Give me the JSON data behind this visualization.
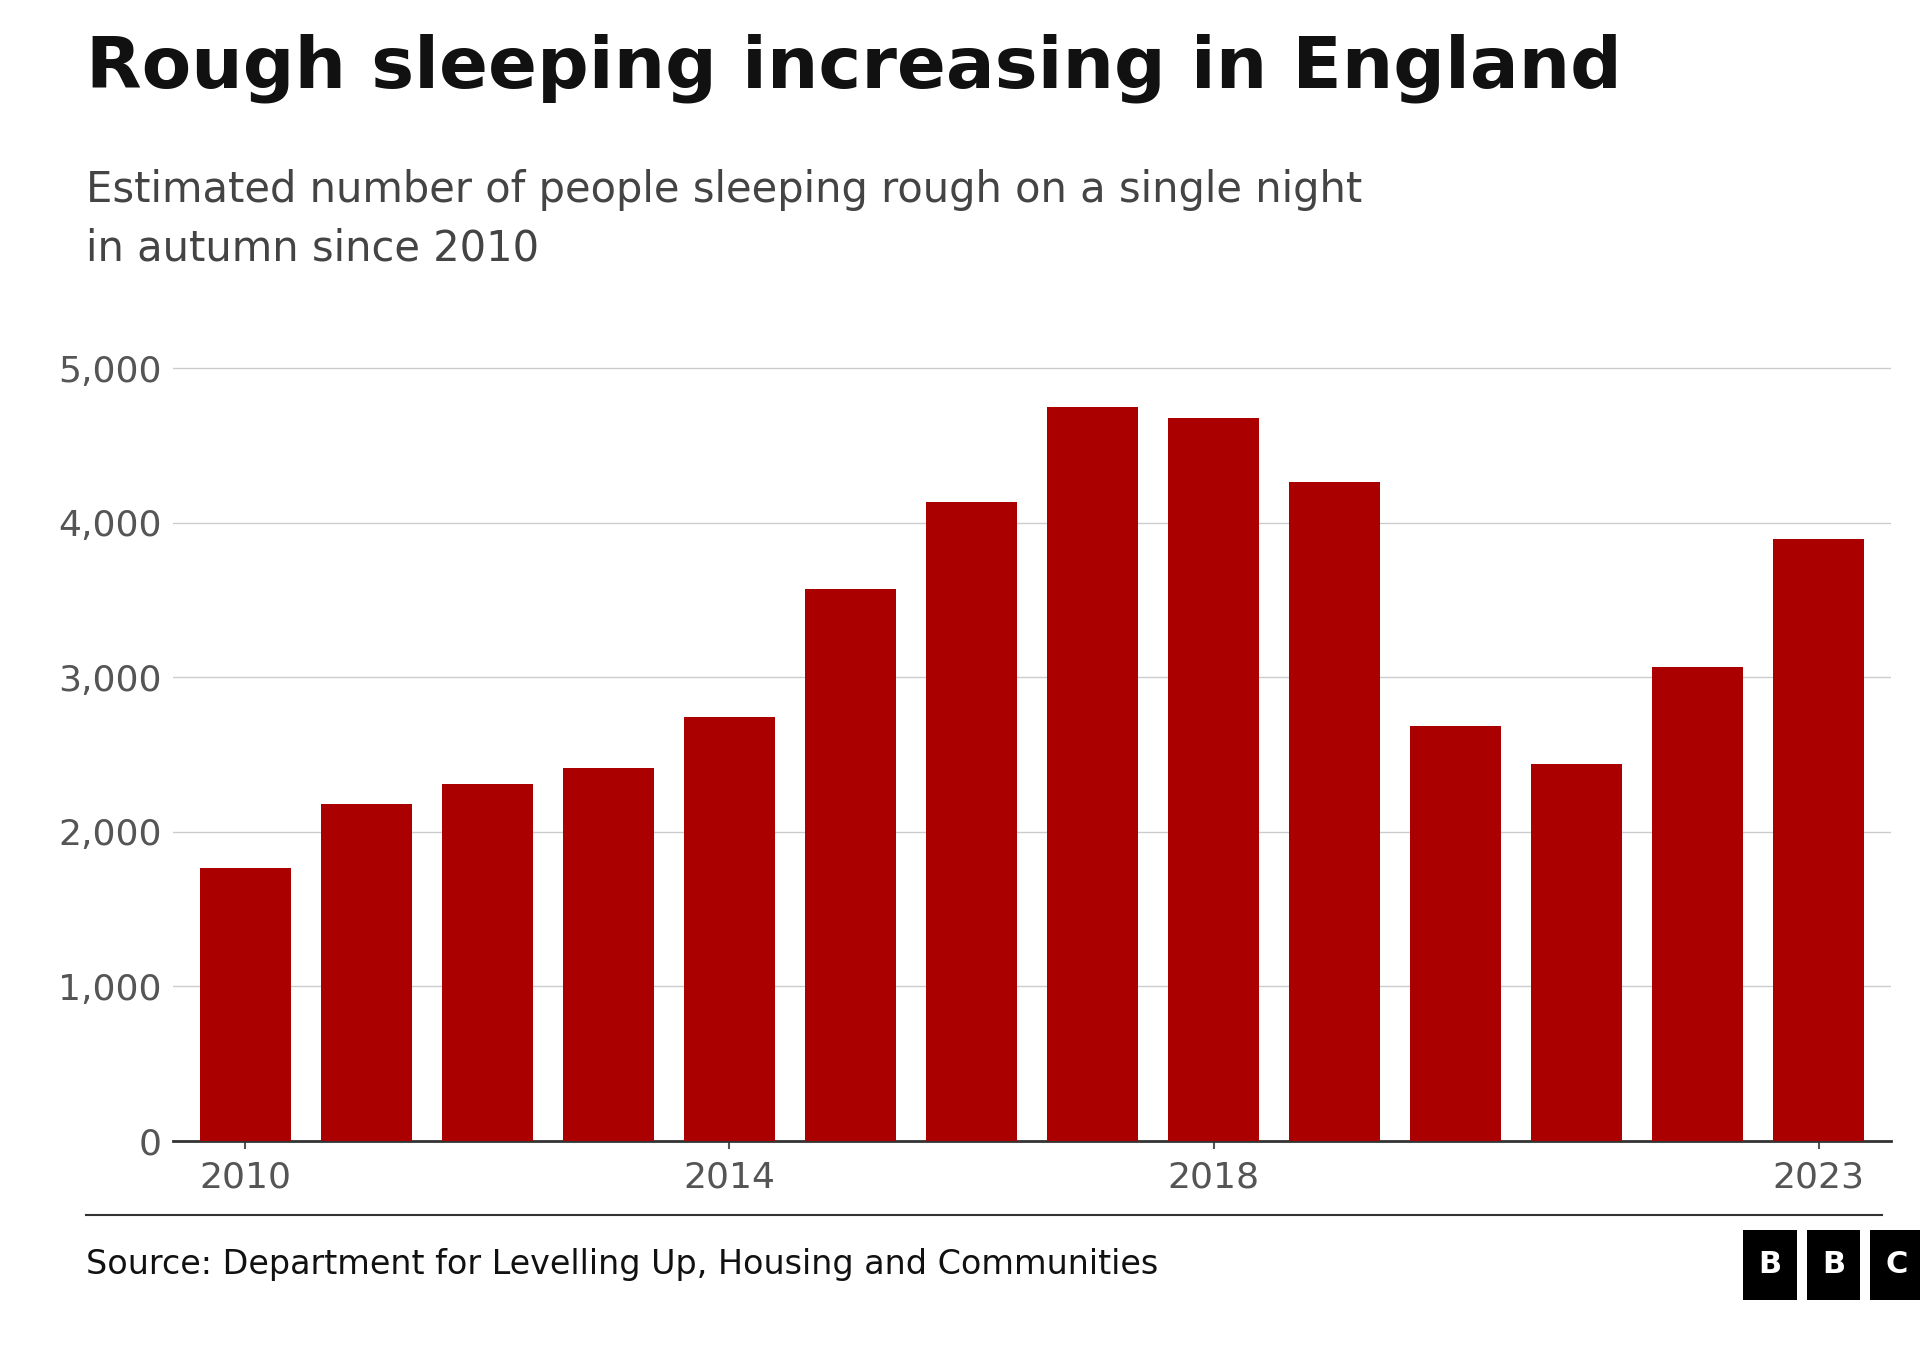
{
  "title": "Rough sleeping increasing in England",
  "subtitle": "Estimated number of people sleeping rough on a single night\nin autumn since 2010",
  "source": "Source: Department for Levelling Up, Housing and Communities",
  "years": [
    2010,
    2011,
    2012,
    2013,
    2014,
    2015,
    2016,
    2017,
    2018,
    2019,
    2020,
    2021,
    2022,
    2023
  ],
  "values": [
    1768,
    2181,
    2309,
    2414,
    2744,
    3569,
    4134,
    4751,
    4677,
    4266,
    2688,
    2440,
    3069,
    3898
  ],
  "bar_color": "#aa0000",
  "background_color": "#ffffff",
  "ylim": [
    0,
    5200
  ],
  "yticks": [
    0,
    1000,
    2000,
    3000,
    4000,
    5000
  ],
  "xticks": [
    2010,
    2014,
    2018,
    2023
  ],
  "title_fontsize": 52,
  "subtitle_fontsize": 30,
  "tick_fontsize": 26,
  "source_fontsize": 24,
  "grid_color": "#cccccc",
  "axis_color": "#555555",
  "text_color": "#111111",
  "subtitle_color": "#444444"
}
